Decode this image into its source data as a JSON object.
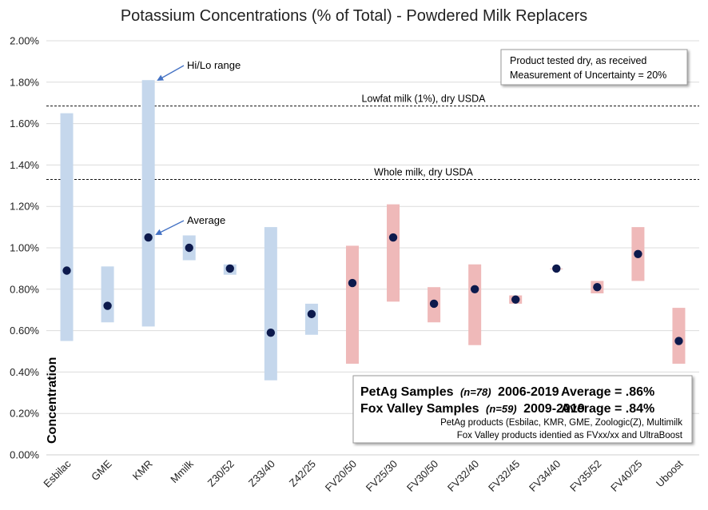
{
  "chart_data": {
    "type": "range-dot",
    "title": "Potassium Concentrations (% of Total) - Powdered Milk Replacers",
    "ylabel": "Concentration",
    "xlabel": "",
    "ylim": [
      0,
      2.0
    ],
    "yticks": [
      0,
      0.2,
      0.4,
      0.6,
      0.8,
      1.0,
      1.2,
      1.4,
      1.6,
      1.8,
      2.0
    ],
    "ytick_labels": [
      "0.00%",
      "0.20%",
      "0.40%",
      "0.60%",
      "0.80%",
      "1.00%",
      "1.20%",
      "1.40%",
      "1.60%",
      "1.80%",
      "2.00%"
    ],
    "grid": true,
    "categories": [
      "Esbilac",
      "GME",
      "KMR",
      "Mmilk",
      "Z30/52",
      "Z33/40",
      "Z42/25",
      "FV20/50",
      "FV25/30",
      "FV30/50",
      "FV32/40",
      "FV32/45",
      "FV34/40",
      "FV35/52",
      "FV40/25",
      "Uboost"
    ],
    "series": [
      {
        "name": "Low",
        "values": [
          0.55,
          0.64,
          0.62,
          0.94,
          0.87,
          0.36,
          0.58,
          0.44,
          0.74,
          0.64,
          0.53,
          0.73,
          0.9,
          0.78,
          0.84,
          0.44
        ]
      },
      {
        "name": "High",
        "values": [
          1.65,
          0.91,
          1.81,
          1.06,
          0.92,
          1.1,
          0.73,
          1.01,
          1.21,
          0.81,
          0.92,
          0.77,
          0.9,
          0.84,
          1.1,
          0.71
        ]
      },
      {
        "name": "Average",
        "values": [
          0.89,
          0.72,
          1.05,
          1.0,
          0.9,
          0.59,
          0.68,
          0.83,
          1.05,
          0.73,
          0.8,
          0.75,
          0.9,
          0.81,
          0.97,
          0.55
        ]
      }
    ],
    "group": [
      "PetAg",
      "PetAg",
      "PetAg",
      "PetAg",
      "PetAg",
      "PetAg",
      "PetAg",
      "Fox Valley",
      "Fox Valley",
      "Fox Valley",
      "Fox Valley",
      "Fox Valley",
      "Fox Valley",
      "Fox Valley",
      "Fox Valley",
      "Fox Valley"
    ],
    "colors": {
      "PetAg": "#c5d7ec",
      "Fox Valley": "#efb9b9",
      "dot": "#0d1a4d",
      "arrow": "#4472c4"
    },
    "reference_lines": [
      {
        "label": "Lowfat milk (1%), dry USDA",
        "value": 1.685
      },
      {
        "label": "Whole milk, dry USDA",
        "value": 1.33
      }
    ],
    "annotations": {
      "range": "Hi/Lo range",
      "average": "Average"
    },
    "note_box": {
      "line1": "Product tested dry, as received",
      "line2": "Measurement of Uncertainty = 20%"
    },
    "legend_box": {
      "petag_name": "PetAg Samples",
      "petag_n": "(n=78)",
      "petag_years": "2006-2019",
      "petag_avg": "Average = .86%",
      "fv_name": "Fox Valley Samples",
      "fv_n": "(n=59)",
      "fv_years": "2009-2019",
      "fv_avg": "Average = .84%",
      "note1": "PetAg products (Esbilac, KMR, GME, Zoologic(Z), Multimilk",
      "note2": "Fox Valley products identied as FVxx/xx and UltraBoost"
    }
  }
}
